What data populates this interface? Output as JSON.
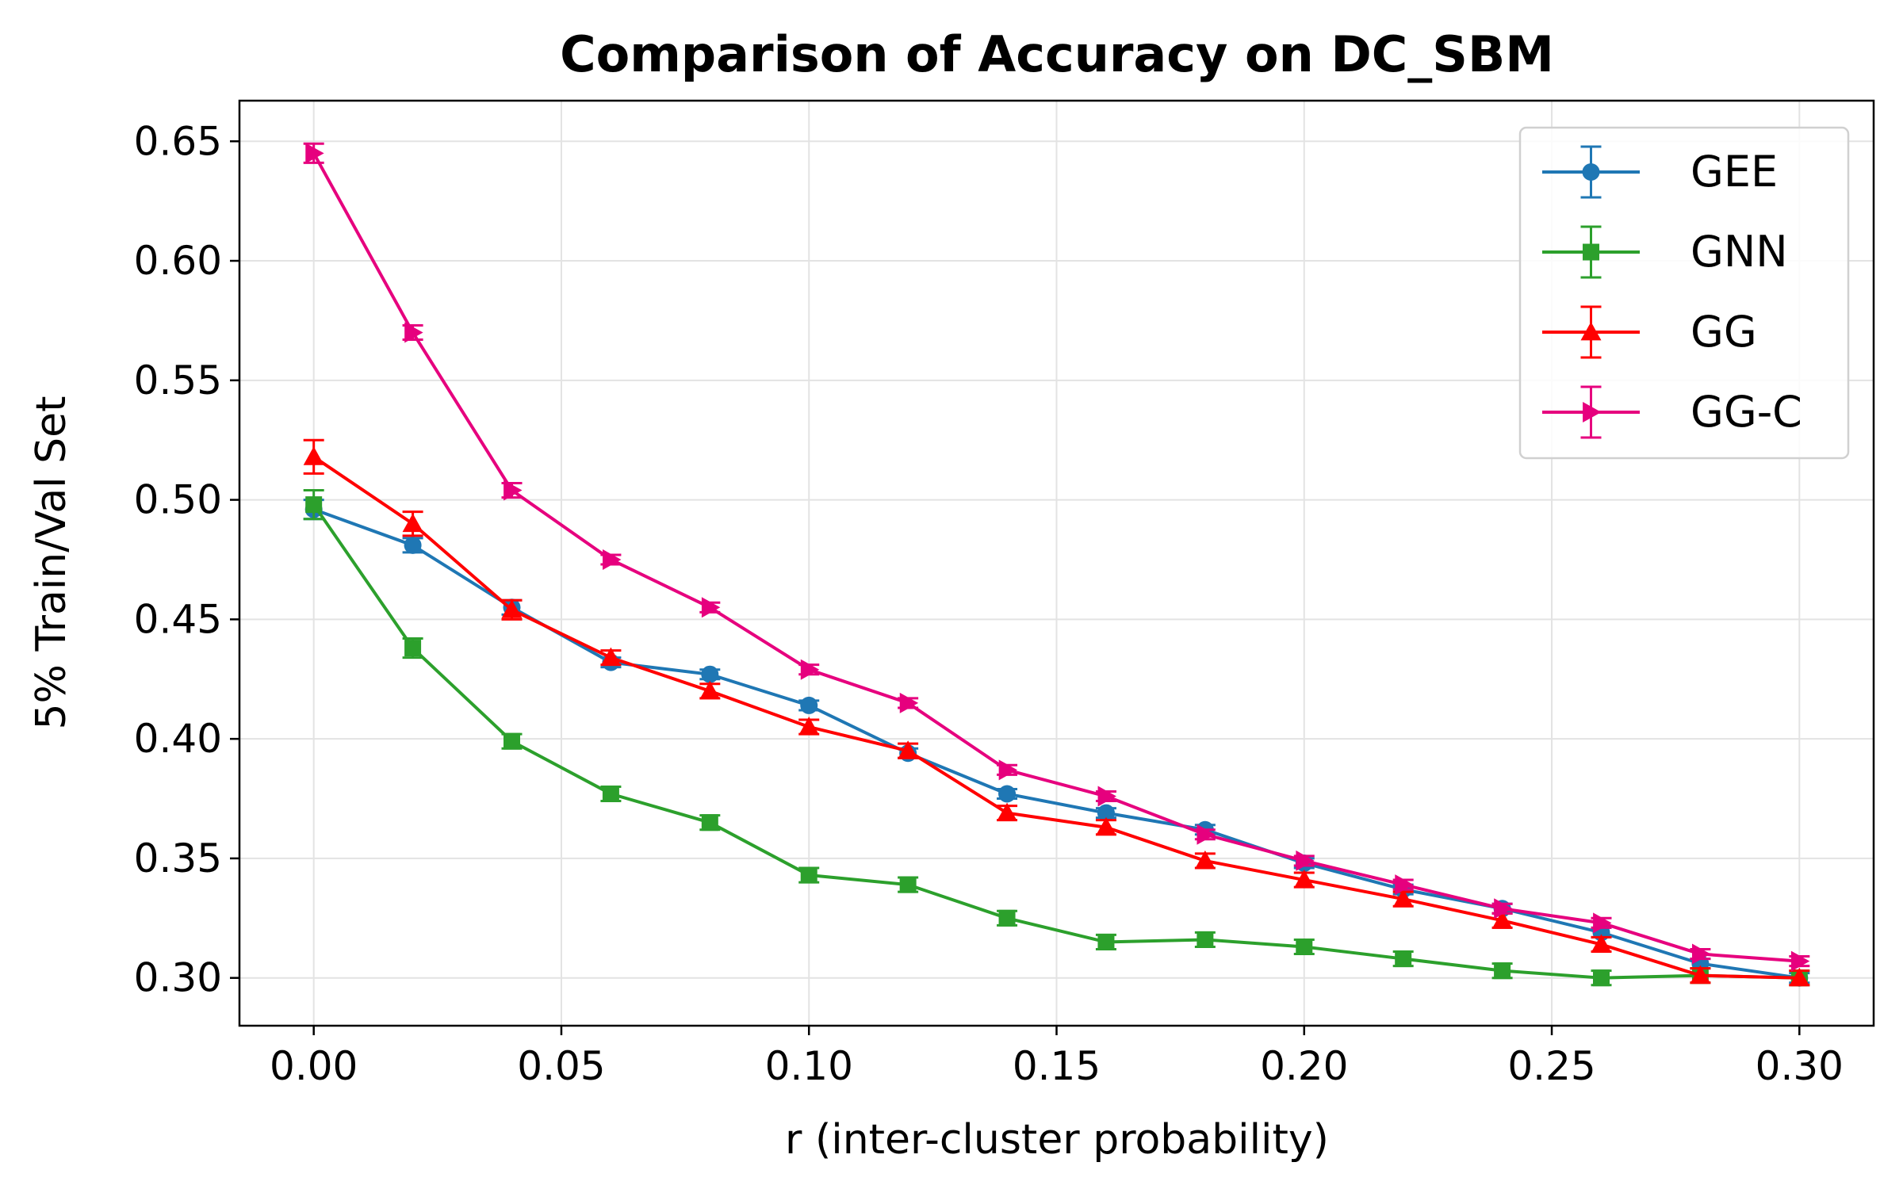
{
  "chart_data": {
    "type": "line",
    "title": "Comparison of Accuracy on DC_SBM",
    "xlabel": "r (inter-cluster probability)",
    "ylabel": "5% Train/Val Set",
    "xlim": [
      -0.015,
      0.315
    ],
    "ylim": [
      0.28,
      0.667
    ],
    "xticks": [
      0.0,
      0.05,
      0.1,
      0.15,
      0.2,
      0.25,
      0.3
    ],
    "xtick_labels": [
      "0.00",
      "0.05",
      "0.10",
      "0.15",
      "0.20",
      "0.25",
      "0.30"
    ],
    "yticks": [
      0.3,
      0.35,
      0.4,
      0.45,
      0.5,
      0.55,
      0.6,
      0.65
    ],
    "ytick_labels": [
      "0.30",
      "0.35",
      "0.40",
      "0.45",
      "0.50",
      "0.55",
      "0.60",
      "0.65"
    ],
    "grid": true,
    "legend_position": "top-right",
    "x": [
      0.0,
      0.02,
      0.04,
      0.06,
      0.08,
      0.1,
      0.12,
      0.14,
      0.16,
      0.18,
      0.2,
      0.22,
      0.24,
      0.26,
      0.28,
      0.3
    ],
    "series": [
      {
        "name": "GEE",
        "color": "#1f77b4",
        "marker": "circle",
        "values": [
          0.496,
          0.481,
          0.455,
          0.432,
          0.427,
          0.414,
          0.394,
          0.377,
          0.369,
          0.362,
          0.348,
          0.337,
          0.329,
          0.319,
          0.306,
          0.3
        ],
        "errors": [
          0.004,
          0.003,
          0.003,
          0.002,
          0.002,
          0.002,
          0.002,
          0.002,
          0.002,
          0.002,
          0.002,
          0.002,
          0.002,
          0.002,
          0.002,
          0.002
        ]
      },
      {
        "name": "GNN",
        "color": "#2ca02c",
        "marker": "square",
        "values": [
          0.498,
          0.438,
          0.399,
          0.377,
          0.365,
          0.343,
          0.339,
          0.325,
          0.315,
          0.316,
          0.313,
          0.308,
          0.303,
          0.3,
          0.301,
          0.3
        ],
        "errors": [
          0.006,
          0.004,
          0.003,
          0.003,
          0.003,
          0.003,
          0.003,
          0.003,
          0.003,
          0.003,
          0.003,
          0.003,
          0.003,
          0.003,
          0.003,
          0.003
        ]
      },
      {
        "name": "GG",
        "color": "#ff0000",
        "marker": "triangle",
        "values": [
          0.518,
          0.49,
          0.454,
          0.434,
          0.42,
          0.405,
          0.395,
          0.369,
          0.363,
          0.349,
          0.341,
          0.333,
          0.324,
          0.314,
          0.301,
          0.3
        ],
        "errors": [
          0.007,
          0.005,
          0.004,
          0.003,
          0.003,
          0.003,
          0.003,
          0.003,
          0.003,
          0.003,
          0.003,
          0.003,
          0.003,
          0.003,
          0.003,
          0.003
        ]
      },
      {
        "name": "GG-C",
        "color": "#e6007e",
        "marker": "triangle-right",
        "values": [
          0.645,
          0.57,
          0.504,
          0.475,
          0.455,
          0.429,
          0.415,
          0.387,
          0.376,
          0.36,
          0.349,
          0.339,
          0.329,
          0.323,
          0.31,
          0.307
        ],
        "errors": [
          0.004,
          0.003,
          0.003,
          0.002,
          0.002,
          0.002,
          0.002,
          0.002,
          0.002,
          0.002,
          0.002,
          0.002,
          0.002,
          0.002,
          0.002,
          0.002
        ]
      }
    ]
  }
}
